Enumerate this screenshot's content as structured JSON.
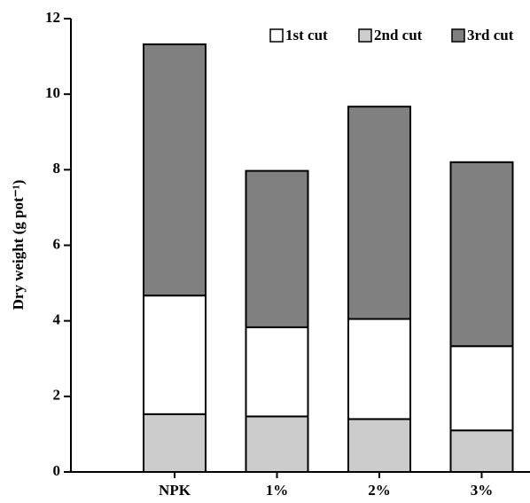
{
  "chart_data": {
    "type": "stacked-bar",
    "y_label": "Dry weight (g pot⁻¹)",
    "categories": [
      "NPK",
      "1%",
      "2%",
      "3%"
    ],
    "series": [
      {
        "name": "1st cut",
        "color": "#ffffff",
        "values": [
          3.14,
          2.36,
          2.65,
          2.23
        ]
      },
      {
        "name": "2nd cut",
        "color": "#cccccc",
        "values": [
          1.53,
          1.47,
          1.4,
          1.1
        ]
      },
      {
        "name": "3rd cut",
        "color": "#808080",
        "values": [
          6.65,
          4.14,
          5.62,
          4.87
        ]
      }
    ],
    "stack_order": [
      1,
      0,
      2
    ],
    "ylim": [
      0,
      12
    ],
    "yticks": [
      0,
      2,
      4,
      6,
      8,
      10,
      12
    ],
    "legend": "upper right"
  }
}
